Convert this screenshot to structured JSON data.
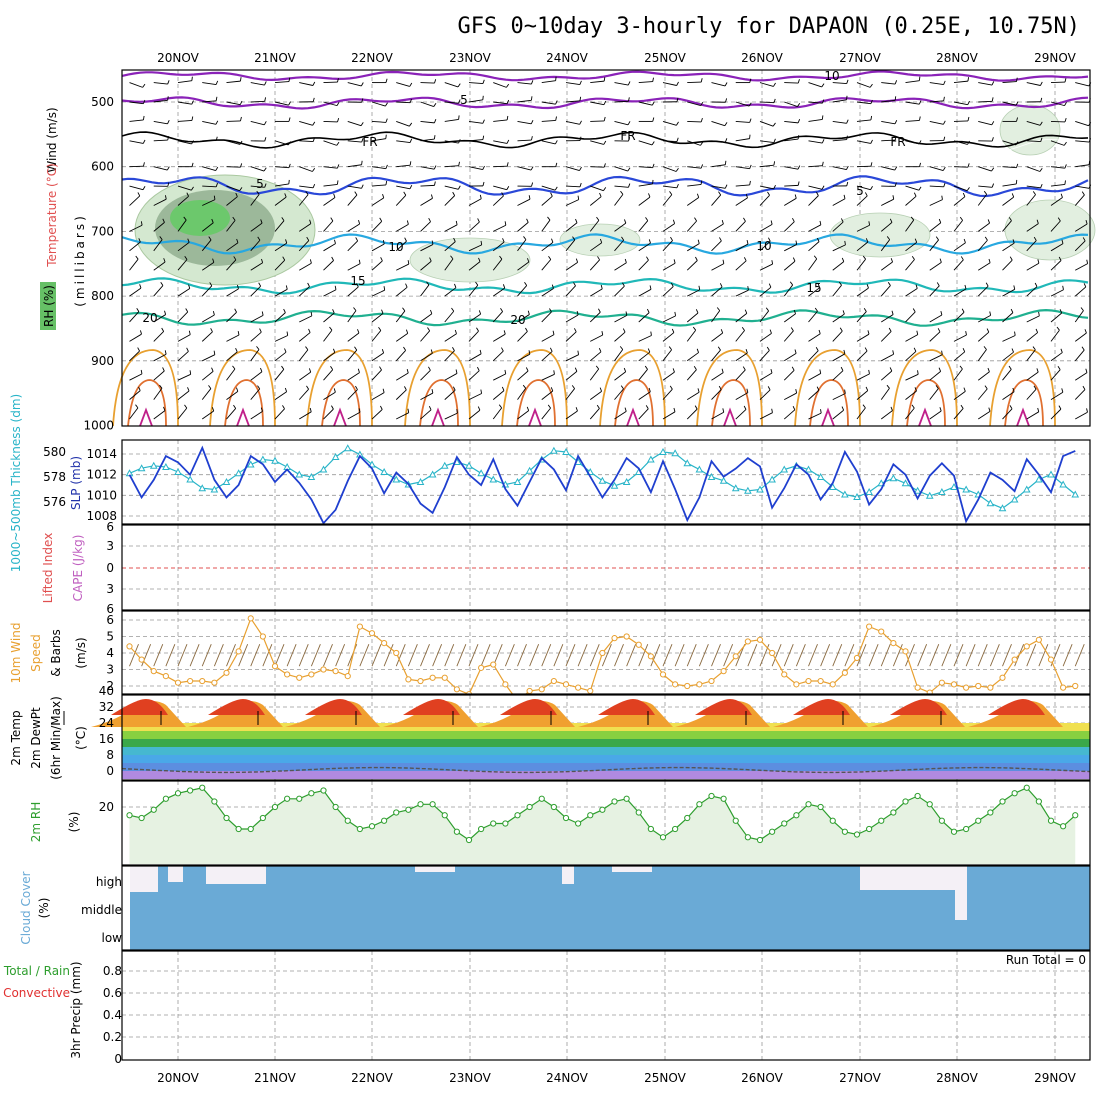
{
  "title": "GFS 0~10day 3-hourly for DAPAON (0.25E, 10.75N)",
  "dates": [
    "20NOV",
    "21NOV",
    "22NOV",
    "23NOV",
    "24NOV",
    "25NOV",
    "26NOV",
    "27NOV",
    "28NOV",
    "29NOV"
  ],
  "colors": {
    "grid": "#999999",
    "wind_line": "#1f3fcf",
    "thickness": "#28b4c8",
    "cape_zero": "#e05050",
    "ws": "#e8a030",
    "rh": "#2e9e2e",
    "cloud": "#6aaad6",
    "cloud_clear": "#f4f0f6"
  },
  "run_total": "Run Total = 0",
  "panels": {
    "upper": {
      "y_ticks": [
        "500",
        "600",
        "700",
        "800",
        "900",
        "1000"
      ],
      "label_millibars": "(millibars)",
      "label_wind": "Wind (m/s)",
      "label_temp": "Temperature (°C)",
      "label_rh": "RH (%)",
      "contour_labels": [
        "10",
        "5",
        "FR",
        "FR",
        "FR",
        "5",
        "5",
        "10",
        "10",
        "15",
        "15",
        "20",
        "20"
      ]
    },
    "pressure": {
      "left_ticks": [
        "580",
        "578",
        "576"
      ],
      "right_ticks": [
        "1014",
        "1012",
        "1010",
        "1008"
      ],
      "label_thickness": "1000~500mb Thickness (dm)",
      "label_slp": "SLP (mb)"
    },
    "stability": {
      "ticks": [
        "6",
        "3",
        "0",
        "3",
        "6"
      ],
      "label_li": "Lifted Index",
      "label_cape": "CAPE (J/kg)"
    },
    "wind10m": {
      "ticks": [
        "6",
        "5",
        "4",
        "3",
        "2"
      ],
      "label_1": "10m Wind",
      "label_2": "Speed",
      "label_3": "& Barbs",
      "label_units": "(m/s)"
    },
    "temp2m": {
      "ticks": [
        "40",
        "32",
        "24",
        "16",
        "8",
        "0"
      ],
      "label_1": "2m Temp",
      "label_2": "2m DewPt",
      "label_3": "(6hr Min/Max)",
      "label_units": "(°C)"
    },
    "rh2m": {
      "ticks": [
        "20"
      ],
      "label": "2m RH",
      "label_units": "(%)"
    },
    "cloud": {
      "levels": [
        "high",
        "middle",
        "low"
      ],
      "label": "Cloud Cover",
      "label_units": "(%)"
    },
    "precip": {
      "ticks": [
        "0.8",
        "0.6",
        "0.4",
        "0.2",
        "0"
      ],
      "label_1": "Total / Rain",
      "label_2": "Convective",
      "label_3": "3hr Precip (mm)"
    }
  },
  "chart_data": [
    {
      "type": "line",
      "title": "GFS 0~10day 3-hourly for DAPAON (0.25E, 10.75N)",
      "xlabel": "",
      "ylabel": "SLP (mb)",
      "x": [
        "19NOV12",
        "19NOV15",
        "19NOV18",
        "19NOV21",
        "20NOV00",
        "20NOV03",
        "20NOV06",
        "20NOV09",
        "20NOV12",
        "20NOV15",
        "20NOV18",
        "20NOV21",
        "21NOV00",
        "21NOV03",
        "21NOV06",
        "21NOV09",
        "21NOV12",
        "21NOV15",
        "21NOV18",
        "21NOV21",
        "22NOV00",
        "22NOV03",
        "22NOV06",
        "22NOV09",
        "22NOV12",
        "22NOV15",
        "22NOV18",
        "22NOV21",
        "23NOV00",
        "23NOV03",
        "23NOV06",
        "23NOV09",
        "23NOV12",
        "23NOV15",
        "23NOV18",
        "23NOV21",
        "24NOV00",
        "24NOV03",
        "24NOV06",
        "24NOV09",
        "24NOV12",
        "24NOV15",
        "24NOV18",
        "24NOV21",
        "25NOV00",
        "25NOV03",
        "25NOV06",
        "25NOV09",
        "25NOV12",
        "25NOV15",
        "25NOV18",
        "25NOV21",
        "26NOV00",
        "26NOV03",
        "26NOV06",
        "26NOV09",
        "26NOV12",
        "26NOV15",
        "26NOV18",
        "26NOV21",
        "27NOV00",
        "27NOV03",
        "27NOV06",
        "27NOV09",
        "27NOV12",
        "27NOV15",
        "27NOV18",
        "27NOV21",
        "28NOV00",
        "28NOV03",
        "28NOV06",
        "28NOV09",
        "28NOV12",
        "28NOV15",
        "28NOV18",
        "28NOV21",
        "29NOV00",
        "29NOV03",
        "29NOV06"
      ],
      "series": [
        {
          "name": "SLP (mb)",
          "values": [
            1012.0,
            1009.8,
            1011.5,
            1013.8,
            1013.2,
            1012.0,
            1014.6,
            1011.5,
            1009.8,
            1011.0,
            1013.8,
            1013.0,
            1011.3,
            1012.5,
            1011.2,
            1009.6,
            1007.3,
            1008.6,
            1011.4,
            1013.8,
            1012.6,
            1010.2,
            1012.2,
            1011.1,
            1009.2,
            1008.3,
            1010.8,
            1013.7,
            1012.0,
            1011.0,
            1013.5,
            1010.6,
            1009.0,
            1011.3,
            1013.6,
            1012.5,
            1010.5,
            1013.8,
            1011.8,
            1009.8,
            1011.5,
            1013.6,
            1012.6,
            1010.3,
            1013.3,
            1010.6,
            1007.6,
            1009.8,
            1013.3,
            1011.8,
            1012.6,
            1013.6,
            1012.8,
            1008.8,
            1010.7,
            1013.0,
            1012.0,
            1009.6,
            1011.2,
            1014.2,
            1012.3,
            1009.1,
            1010.6,
            1013.0,
            1012.0,
            1009.7,
            1011.9,
            1013.1,
            1011.9,
            1007.5,
            1009.6,
            1012.2,
            1011.5,
            1010.4,
            1013.5,
            1012.0,
            1010.3,
            1013.8,
            1014.3
          ]
        },
        {
          "name": "1000~500mb Thickness (dm)",
          "values": [
            578.3,
            578.7,
            578.9,
            578.8,
            578.4,
            577.8,
            577.1,
            577.0,
            577.6,
            578.3,
            579.0,
            579.4,
            579.3,
            578.8,
            578.2,
            578.0,
            578.6,
            579.6,
            580.3,
            579.8,
            579.0,
            578.4,
            577.8,
            577.4,
            577.6,
            578.2,
            578.9,
            579.2,
            578.9,
            578.3,
            577.8,
            577.4,
            577.6,
            578.5,
            579.4,
            580.1,
            580.0,
            579.2,
            578.4,
            577.7,
            577.3,
            577.6,
            578.4,
            579.4,
            580.0,
            579.9,
            579.1,
            578.6,
            578.0,
            577.7,
            577.1,
            576.9,
            577.0,
            577.8,
            578.6,
            578.9,
            578.6,
            578.0,
            577.2,
            576.6,
            576.4,
            576.8,
            577.5,
            577.9,
            577.5,
            576.9,
            576.5,
            576.8,
            577.2,
            577.0,
            576.6,
            575.9,
            575.5,
            576.2,
            577.0,
            577.8,
            578.2,
            577.4,
            576.6
          ]
        }
      ]
    },
    {
      "type": "line",
      "title": "10m Wind Speed",
      "xlabel": "",
      "ylabel": "(m/s)",
      "ylim": [
        1.5,
        6.5
      ],
      "series": [
        {
          "name": "Speed",
          "values": [
            4.4,
            3.6,
            2.9,
            2.6,
            2.2,
            2.3,
            2.3,
            2.2,
            2.8,
            4.1,
            6.1,
            5.0,
            3.2,
            2.7,
            2.5,
            2.7,
            3.0,
            2.9,
            2.6,
            5.6,
            5.2,
            4.6,
            4.0,
            2.4,
            2.3,
            2.5,
            2.5,
            1.8,
            1.5,
            3.1,
            3.3,
            2.1,
            1.1,
            1.7,
            1.8,
            2.3,
            2.1,
            1.9,
            1.7,
            4.0,
            4.9,
            5.0,
            4.5,
            3.8,
            2.7,
            2.1,
            2.0,
            2.1,
            2.3,
            2.9,
            3.8,
            4.7,
            4.8,
            4.0,
            2.7,
            2.1,
            2.3,
            2.3,
            2.1,
            2.8,
            3.7,
            5.6,
            5.3,
            4.6,
            4.1,
            1.9,
            1.6,
            2.2,
            2.1,
            1.9,
            2.0,
            1.9,
            2.5,
            3.6,
            4.4,
            4.8,
            3.6,
            1.9,
            2.0
          ]
        }
      ]
    },
    {
      "type": "area",
      "title": "2m RH",
      "xlabel": "",
      "ylabel": "(%)",
      "series": [
        {
          "name": "2m RH",
          "values": [
            17,
            16,
            19,
            23,
            25,
            26,
            27,
            22,
            16,
            12,
            12,
            16,
            20,
            23,
            23,
            25,
            26,
            20,
            15,
            12,
            13,
            15,
            18,
            19,
            21,
            21,
            17,
            11,
            8,
            12,
            14,
            14,
            17,
            20,
            23,
            20,
            16,
            14,
            17,
            19,
            22,
            23,
            18,
            12,
            9,
            12,
            16,
            21,
            24,
            23,
            15,
            9,
            8,
            11,
            14,
            17,
            21,
            20,
            15,
            11,
            10,
            12,
            15,
            18,
            22,
            24,
            21,
            15,
            11,
            12,
            15,
            18,
            22,
            25,
            27,
            22,
            15,
            13,
            17
          ]
        }
      ]
    }
  ]
}
